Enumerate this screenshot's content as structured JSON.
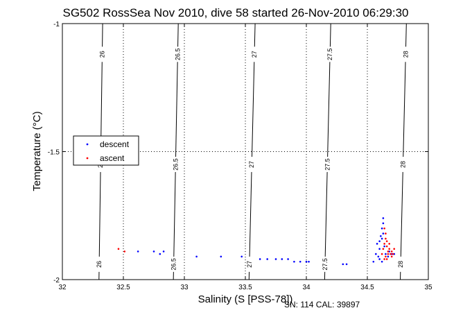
{
  "chart_data": {
    "type": "scatter",
    "title": "SG502 RossSea Nov 2010, dive 58 started 26-Nov-2010 06:29:30",
    "xlabel": "Salinity (S [PSS-78])",
    "ylabel": "Temperature (°C)",
    "xlim": [
      32,
      35
    ],
    "ylim": [
      -2,
      -1
    ],
    "xticks": [
      "32",
      "32.5",
      "33",
      "33.5",
      "34",
      "34.5",
      "35"
    ],
    "yticks": [
      "-1",
      "-1.5",
      "-2"
    ],
    "grid": true,
    "legend_position": "left",
    "footer": "SN: 114  CAL: 39897",
    "contours": [
      {
        "label": "26",
        "x_top": 32.33,
        "x_bottom": 32.3
      },
      {
        "label": "26.5",
        "x_top": 32.95,
        "x_bottom": 32.91
      },
      {
        "label": "27",
        "x_top": 33.58,
        "x_bottom": 33.53
      },
      {
        "label": "27.5",
        "x_top": 34.2,
        "x_bottom": 34.15
      },
      {
        "label": "28",
        "x_top": 34.82,
        "x_bottom": 34.77
      }
    ],
    "series": [
      {
        "name": "descent",
        "color": "#0000ff",
        "points": [
          [
            32.62,
            -1.89
          ],
          [
            32.75,
            -1.89
          ],
          [
            32.8,
            -1.9
          ],
          [
            32.83,
            -1.89
          ],
          [
            33.1,
            -1.91
          ],
          [
            33.3,
            -1.91
          ],
          [
            33.47,
            -1.91
          ],
          [
            33.62,
            -1.92
          ],
          [
            33.68,
            -1.92
          ],
          [
            33.75,
            -1.92
          ],
          [
            33.8,
            -1.92
          ],
          [
            33.85,
            -1.92
          ],
          [
            33.9,
            -1.93
          ],
          [
            33.95,
            -1.93
          ],
          [
            34.0,
            -1.93
          ],
          [
            34.02,
            -1.93
          ],
          [
            34.3,
            -1.94
          ],
          [
            34.33,
            -1.94
          ],
          [
            34.55,
            -1.93
          ],
          [
            34.57,
            -1.9
          ],
          [
            34.58,
            -1.86
          ],
          [
            34.6,
            -1.85
          ],
          [
            34.61,
            -1.83
          ],
          [
            34.62,
            -1.8
          ],
          [
            34.63,
            -1.78
          ],
          [
            34.63,
            -1.76
          ],
          [
            34.62,
            -1.84
          ],
          [
            34.64,
            -1.87
          ],
          [
            34.6,
            -1.92
          ],
          [
            34.62,
            -1.93
          ],
          [
            34.65,
            -1.9
          ],
          [
            34.63,
            -1.82
          ],
          [
            34.6,
            -1.88
          ],
          [
            34.67,
            -1.91
          ],
          [
            34.7,
            -1.9
          ],
          [
            34.72,
            -1.9
          ],
          [
            34.68,
            -1.89
          ],
          [
            34.59,
            -1.91
          ]
        ]
      },
      {
        "name": "ascent",
        "color": "#ff0000",
        "points": [
          [
            32.46,
            -1.88
          ],
          [
            32.51,
            -1.89
          ],
          [
            34.62,
            -1.9
          ],
          [
            34.63,
            -1.88
          ],
          [
            34.64,
            -1.86
          ],
          [
            34.65,
            -1.84
          ],
          [
            34.66,
            -1.87
          ],
          [
            34.65,
            -1.91
          ],
          [
            34.66,
            -1.92
          ],
          [
            34.67,
            -1.9
          ],
          [
            34.68,
            -1.88
          ],
          [
            34.68,
            -1.86
          ],
          [
            34.69,
            -1.9
          ],
          [
            34.7,
            -1.89
          ],
          [
            34.7,
            -1.91
          ],
          [
            34.71,
            -1.9
          ],
          [
            34.72,
            -1.88
          ],
          [
            34.65,
            -1.82
          ],
          [
            34.64,
            -1.8
          ],
          [
            34.66,
            -1.85
          ],
          [
            34.67,
            -1.89
          ],
          [
            34.64,
            -1.92
          ]
        ]
      }
    ]
  }
}
